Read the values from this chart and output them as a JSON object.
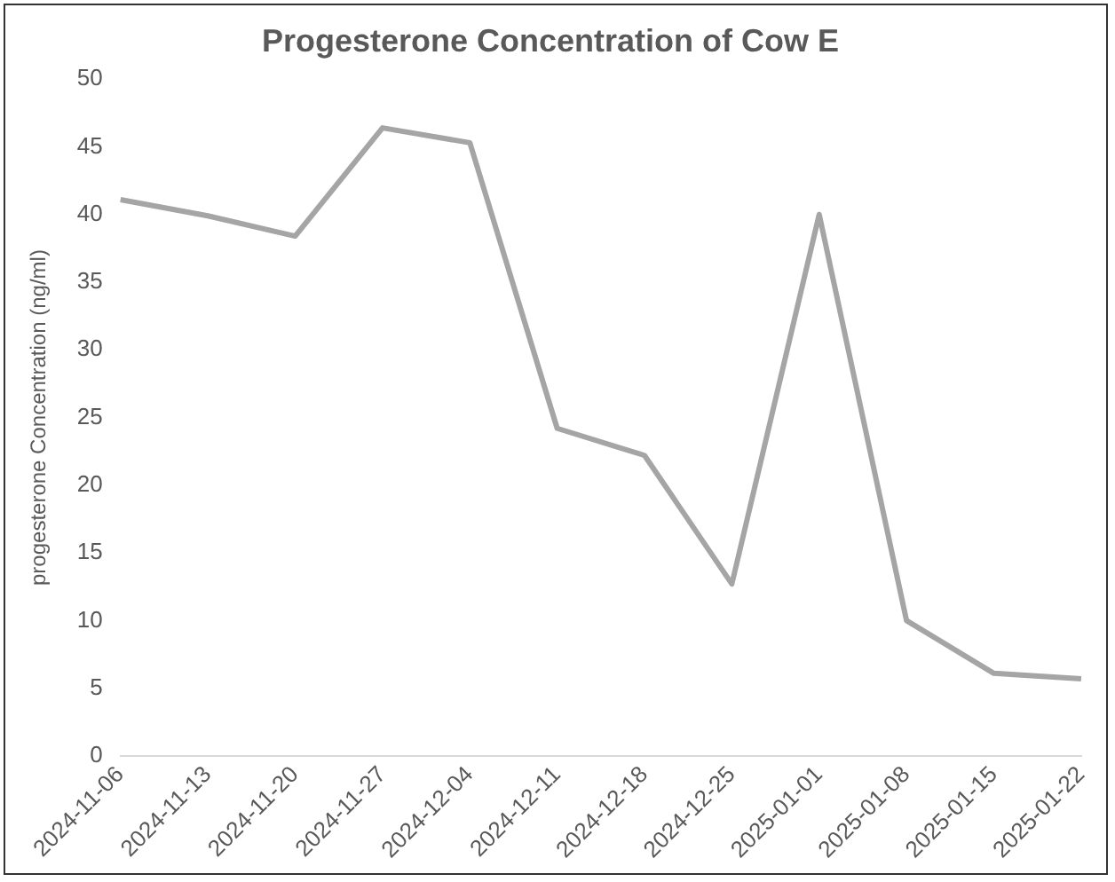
{
  "chart_data": {
    "type": "line",
    "title": "Progesterone Concentration of Cow E",
    "ylabel": "progesterone Concentration (ng/ml)",
    "categories": [
      "2024-11-06",
      "2024-11-13",
      "2024-11-20",
      "2024-11-27",
      "2024-12-04",
      "2024-12-11",
      "2024-12-18",
      "2024-12-25",
      "2025-01-01",
      "2025-01-08",
      "2025-01-15",
      "2025-01-22"
    ],
    "series": [
      {
        "color": "#a5a5a5",
        "values": [
          41.1,
          39.9,
          38.4,
          46.4,
          45.3,
          24.2,
          22.2,
          12.7,
          40.0,
          10.0,
          6.1,
          5.7
        ]
      }
    ],
    "ylim": [
      0,
      50
    ],
    "yticks": [
      0,
      5,
      10,
      15,
      20,
      25,
      30,
      35,
      40,
      45,
      50
    ],
    "grid": false,
    "legend": false,
    "marker": "none",
    "line_style": "solid"
  }
}
